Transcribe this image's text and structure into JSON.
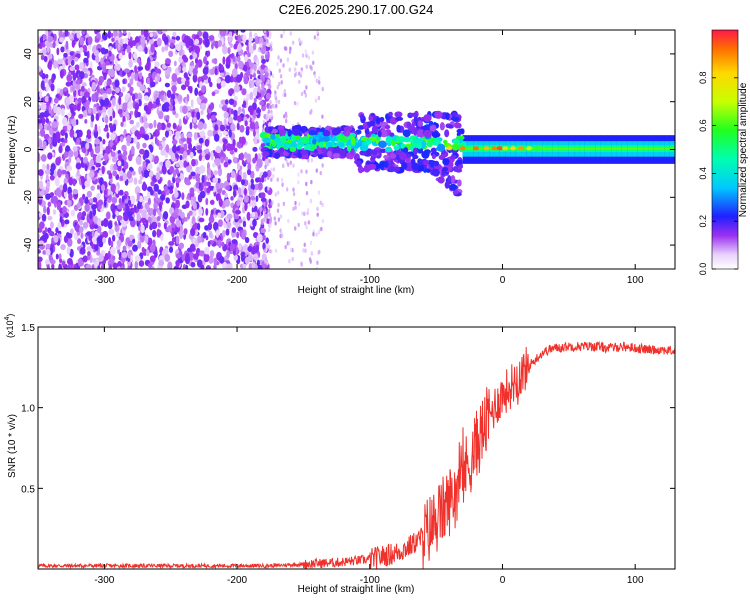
{
  "figure_title": "C2E6.2025.290.17.00.G24",
  "colors": {
    "snr_line": "#f0302a",
    "axis": "#000000",
    "scatter_noise": "#7a2be0",
    "scatter_light": "#d9c2f5"
  },
  "chart_data": [
    {
      "type": "heatmap",
      "title": "C2E6.2025.290.17.00.G24",
      "xlabel": "Height of straight line (km)",
      "ylabel": "Frequency (Hz)",
      "xlim": [
        -350,
        130
      ],
      "ylim": [
        -50,
        50
      ],
      "xticks": [
        -300,
        -200,
        -100,
        0,
        100
      ],
      "yticks": [
        -40,
        -20,
        0,
        20,
        40
      ],
      "grid": false,
      "colorbar": {
        "label": "Normalized spectral amplitude",
        "range": [
          0.0,
          1.0
        ],
        "ticks": [
          "0.0",
          "0.2",
          "0.4",
          "0.6",
          "0.8"
        ],
        "colormap": "rainbow"
      },
      "regions": [
        {
          "name": "noise",
          "x_range": [
            -350,
            -175
          ],
          "freq_range": [
            -50,
            50
          ],
          "amplitude": "0.15-0.25"
        },
        {
          "name": "sparse-noise",
          "x_range": [
            -175,
            -140
          ],
          "freq_range": [
            -50,
            50
          ],
          "amplitude": "0.05-0.15"
        },
        {
          "name": "scintillating-signal",
          "x_range": [
            -180,
            -30
          ],
          "freq_center": 2,
          "freq_spread": "-25 to +10",
          "amplitude": "0.2-0.6"
        },
        {
          "name": "strong-signal",
          "x_range": [
            -30,
            130
          ],
          "freq_center": 0,
          "amplitude": "0.6-1.0"
        }
      ]
    },
    {
      "type": "line",
      "xlabel": "Height of straight line (km)",
      "ylabel": "SNR (10 * v/v)",
      "exponent_label": "(x10",
      "exponent_power": "4",
      "exponent_close": ")",
      "xlim": [
        -350,
        130
      ],
      "ylim": [
        0,
        1.5
      ],
      "xticks": [
        -300,
        -200,
        -100,
        0,
        100
      ],
      "yticks": [
        "0.5",
        "1.0",
        "1.5"
      ],
      "grid": false,
      "series": [
        {
          "name": "SNR",
          "x": [
            -350,
            -300,
            -250,
            -200,
            -175,
            -150,
            -125,
            -100,
            -90,
            -80,
            -70,
            -60,
            -50,
            -45,
            -40,
            -35,
            -30,
            -25,
            -20,
            -15,
            -10,
            -5,
            0,
            5,
            10,
            15,
            20,
            25,
            30,
            35,
            40,
            50,
            60,
            70,
            80,
            90,
            100,
            110,
            120,
            130
          ],
          "values": [
            0.02,
            0.02,
            0.02,
            0.02,
            0.02,
            0.03,
            0.04,
            0.06,
            0.08,
            0.1,
            0.14,
            0.2,
            0.3,
            0.36,
            0.42,
            0.5,
            0.58,
            0.66,
            0.76,
            0.86,
            0.94,
            1.02,
            1.08,
            1.12,
            1.18,
            1.22,
            1.26,
            1.3,
            1.34,
            1.36,
            1.37,
            1.38,
            1.38,
            1.38,
            1.37,
            1.38,
            1.37,
            1.36,
            1.36,
            1.35
          ]
        }
      ]
    }
  ]
}
